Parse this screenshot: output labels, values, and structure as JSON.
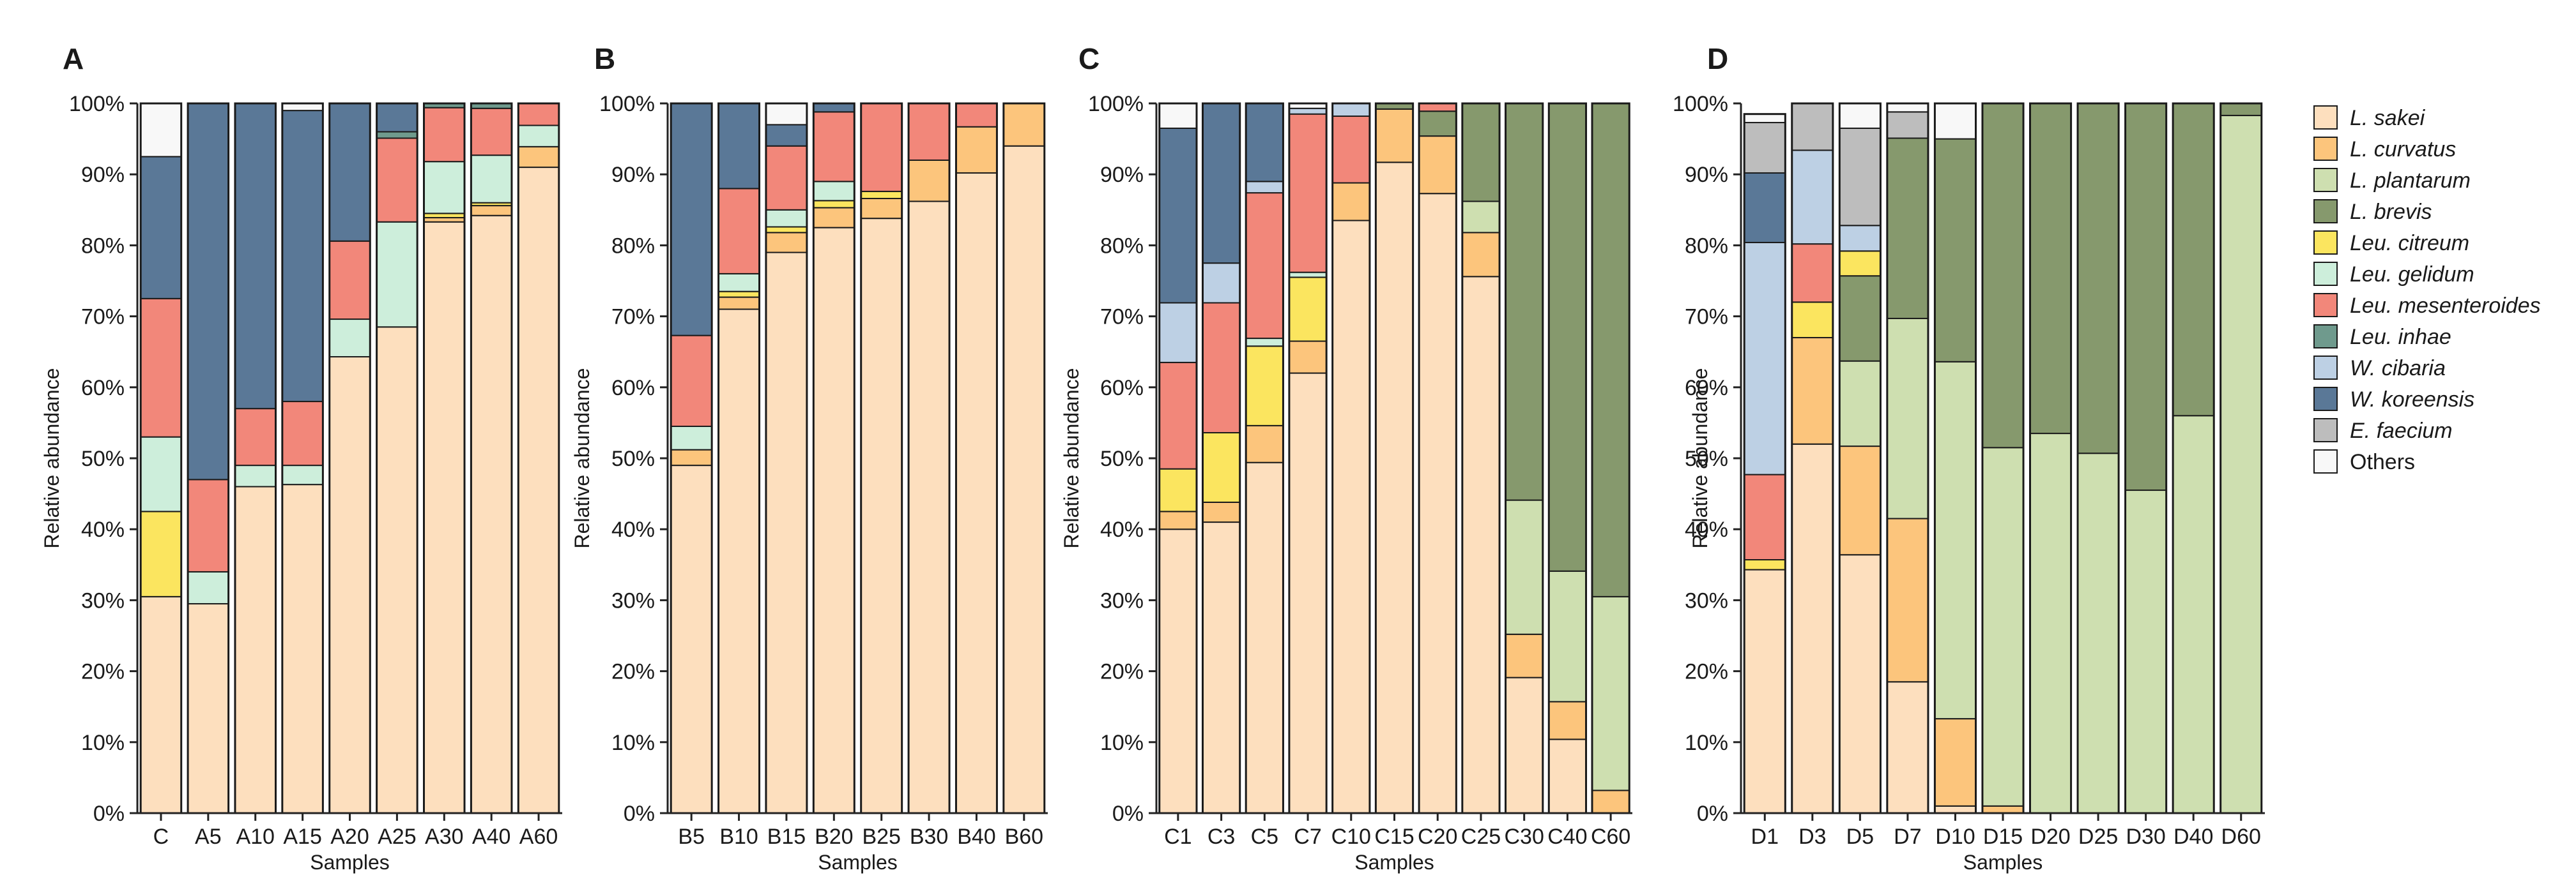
{
  "chart_data": {
    "type": "bar",
    "stacked": true,
    "ylabel": "Relative abundance",
    "xlabel": "Samples",
    "ylim": [
      0,
      100
    ],
    "yticks": [
      "0%",
      "10%",
      "20%",
      "30%",
      "40%",
      "50%",
      "60%",
      "70%",
      "80%",
      "90%",
      "100%"
    ],
    "species": [
      {
        "name": "L. sakei",
        "color": "#FDDFBE",
        "italic": true
      },
      {
        "name": "L. curvatus",
        "color": "#FCC57C",
        "italic": true
      },
      {
        "name": "L. plantarum",
        "color": "#CEDFB0",
        "italic": true
      },
      {
        "name": "L. brevis",
        "color": "#86996D",
        "italic": true
      },
      {
        "name": "Leu. citreum",
        "color": "#FBE55F",
        "italic": true
      },
      {
        "name": "Leu. gelidum",
        "color": "#CDEEDB",
        "italic": true
      },
      {
        "name": "Leu. mesenteroides",
        "color": "#F2877A",
        "italic": true
      },
      {
        "name": "Leu. inhae",
        "color": "#6F9A8D",
        "italic": true
      },
      {
        "name": "W. cibaria",
        "color": "#BDD0E4",
        "italic": true
      },
      {
        "name": "W. koreensis",
        "color": "#5A7897",
        "italic": true
      },
      {
        "name": "E. faecium",
        "color": "#BDBDBD",
        "italic": true
      },
      {
        "name": "Others",
        "color": "#F8F8F8",
        "italic": false
      }
    ],
    "panels": [
      {
        "label": "A",
        "samples": [
          {
            "name": "C",
            "values": [
              30.5,
              0,
              0,
              0,
              12,
              10.5,
              19.5,
              0,
              0,
              20,
              0,
              7.5
            ]
          },
          {
            "name": "A5",
            "values": [
              29.5,
              0,
              0,
              0,
              0,
              4.5,
              13,
              0,
              0,
              53,
              0,
              0
            ]
          },
          {
            "name": "A10",
            "values": [
              46,
              0,
              0,
              0,
              0,
              3,
              8,
              0,
              0,
              43,
              0,
              0
            ]
          },
          {
            "name": "A15",
            "values": [
              46.3,
              0,
              0,
              0,
              0,
              2.7,
              9,
              0,
              0,
              41,
              0,
              1
            ]
          },
          {
            "name": "A20",
            "values": [
              64.3,
              0,
              0,
              0,
              0,
              5.3,
              11,
              0,
              0,
              19.4,
              0,
              0
            ]
          },
          {
            "name": "A25",
            "values": [
              68.5,
              0,
              0,
              0,
              0,
              14.8,
              11.8,
              0.9,
              0,
              4,
              0,
              0
            ]
          },
          {
            "name": "A30",
            "values": [
              83.3,
              0.6,
              0,
              0,
              0.6,
              7.3,
              7.6,
              0.6,
              0,
              0,
              0,
              0
            ]
          },
          {
            "name": "A40",
            "values": [
              84.2,
              1.4,
              0,
              0,
              0.4,
              6.7,
              6.6,
              0.7,
              0,
              0,
              0,
              0
            ]
          },
          {
            "name": "A60",
            "values": [
              91,
              2.9,
              0,
              0,
              0,
              3,
              3.1,
              0,
              0,
              0,
              0,
              0
            ]
          }
        ]
      },
      {
        "label": "B",
        "samples": [
          {
            "name": "B5",
            "values": [
              49,
              2.2,
              0,
              0,
              0,
              3.3,
              12.8,
              0,
              0,
              32.7,
              0,
              0
            ]
          },
          {
            "name": "B10",
            "values": [
              71,
              1.7,
              0,
              0,
              0.8,
              2.5,
              12,
              0,
              0,
              12,
              0,
              0
            ]
          },
          {
            "name": "B15",
            "values": [
              79,
              2.8,
              0,
              0,
              0.8,
              2.4,
              9,
              0,
              0,
              3,
              0,
              3
            ]
          },
          {
            "name": "B20",
            "values": [
              82.5,
              2.8,
              0,
              0,
              1,
              2.7,
              9.8,
              0,
              0,
              1.2,
              0,
              0
            ]
          },
          {
            "name": "B25",
            "values": [
              83.8,
              2.8,
              0,
              0,
              1,
              0,
              12.4,
              0,
              0,
              0,
              0,
              0
            ]
          },
          {
            "name": "B30",
            "values": [
              86.2,
              5.8,
              0,
              0,
              0,
              0,
              8,
              0,
              0,
              0,
              0,
              0
            ]
          },
          {
            "name": "B40",
            "values": [
              90.2,
              6.5,
              0,
              0,
              0,
              0,
              3.3,
              0,
              0,
              0,
              0,
              0
            ]
          },
          {
            "name": "B60",
            "values": [
              94,
              6,
              0,
              0,
              0,
              0,
              0,
              0,
              0,
              0,
              0,
              0
            ]
          }
        ]
      },
      {
        "label": "C",
        "samples": [
          {
            "name": "C1",
            "values": [
              40,
              2.5,
              0,
              0,
              6,
              0,
              15,
              0,
              8.4,
              24.6,
              0,
              3.5
            ]
          },
          {
            "name": "C3",
            "values": [
              41,
              2.8,
              0,
              0,
              9.8,
              0,
              18.3,
              0,
              5.6,
              22.5,
              0,
              0
            ]
          },
          {
            "name": "C5",
            "values": [
              49.4,
              5.2,
              0,
              0,
              11.2,
              1.1,
              20.5,
              0,
              1.6,
              11,
              0,
              0
            ]
          },
          {
            "name": "C7",
            "values": [
              62,
              4.5,
              0,
              0,
              9,
              0.7,
              22.3,
              0,
              0.8,
              0,
              0,
              0.7
            ]
          },
          {
            "name": "C10",
            "values": [
              83.5,
              5.3,
              0,
              0,
              0,
              0,
              9.4,
              0,
              1.8,
              0,
              0,
              0
            ]
          },
          {
            "name": "C15",
            "values": [
              91.7,
              7.5,
              0,
              0.8,
              0,
              0,
              0,
              0,
              0,
              0,
              0,
              0
            ]
          },
          {
            "name": "C20",
            "values": [
              87.3,
              8.1,
              0,
              3.5,
              0,
              0,
              1.1,
              0,
              0,
              0,
              0,
              0
            ]
          },
          {
            "name": "C25",
            "values": [
              75.6,
              6.2,
              4.4,
              13.8,
              0,
              0,
              0,
              0,
              0,
              0,
              0,
              0
            ]
          },
          {
            "name": "C30",
            "values": [
              19.1,
              6.1,
              18.9,
              55.9,
              0,
              0,
              0,
              0,
              0,
              0,
              0,
              0
            ]
          },
          {
            "name": "C40",
            "values": [
              10.4,
              5.3,
              18.4,
              65.9,
              0,
              0,
              0,
              0,
              0,
              0,
              0,
              0
            ]
          },
          {
            "name": "C60",
            "values": [
              0,
              3.2,
              27.3,
              69.5,
              0,
              0,
              0,
              0,
              0,
              0,
              0,
              0
            ]
          }
        ]
      },
      {
        "label": "D",
        "samples": [
          {
            "name": "D1",
            "values": [
              34.3,
              0,
              0,
              0,
              1.4,
              0,
              12,
              0,
              32.7,
              9.8,
              7.1,
              1.2
            ]
          },
          {
            "name": "D3",
            "values": [
              52,
              15,
              0,
              0,
              5,
              0,
              8.2,
              0,
              13.2,
              0,
              6.6,
              0
            ]
          },
          {
            "name": "D5",
            "values": [
              36.4,
              15.3,
              12,
              12,
              3.5,
              0,
              0,
              0,
              3.6,
              0,
              13.7,
              3.5
            ]
          },
          {
            "name": "D7",
            "values": [
              18.5,
              23,
              28.2,
              25.4,
              0,
              0,
              0,
              0,
              0,
              0,
              3.7,
              1.2
            ]
          },
          {
            "name": "D10",
            "values": [
              1,
              12.3,
              50.3,
              31.4,
              0,
              0,
              0,
              0,
              0,
              0,
              0,
              5
            ]
          },
          {
            "name": "D15",
            "values": [
              0,
              1,
              50.5,
              48.5,
              0,
              0,
              0,
              0,
              0,
              0,
              0,
              0
            ]
          },
          {
            "name": "D20",
            "values": [
              0,
              0,
              53.5,
              46.5,
              0,
              0,
              0,
              0,
              0,
              0,
              0,
              0
            ]
          },
          {
            "name": "D25",
            "values": [
              0,
              0,
              50.7,
              49.3,
              0,
              0,
              0,
              0,
              0,
              0,
              0,
              0
            ]
          },
          {
            "name": "D30",
            "values": [
              0,
              0,
              45.5,
              54.5,
              0,
              0,
              0,
              0,
              0,
              0,
              0,
              0
            ]
          },
          {
            "name": "D40",
            "values": [
              0,
              0,
              56,
              44,
              0,
              0,
              0,
              0,
              0,
              0,
              0,
              0
            ]
          },
          {
            "name": "D60",
            "values": [
              0,
              0,
              98.3,
              1.7,
              0,
              0,
              0,
              0,
              0,
              0,
              0,
              0
            ]
          }
        ]
      }
    ]
  }
}
